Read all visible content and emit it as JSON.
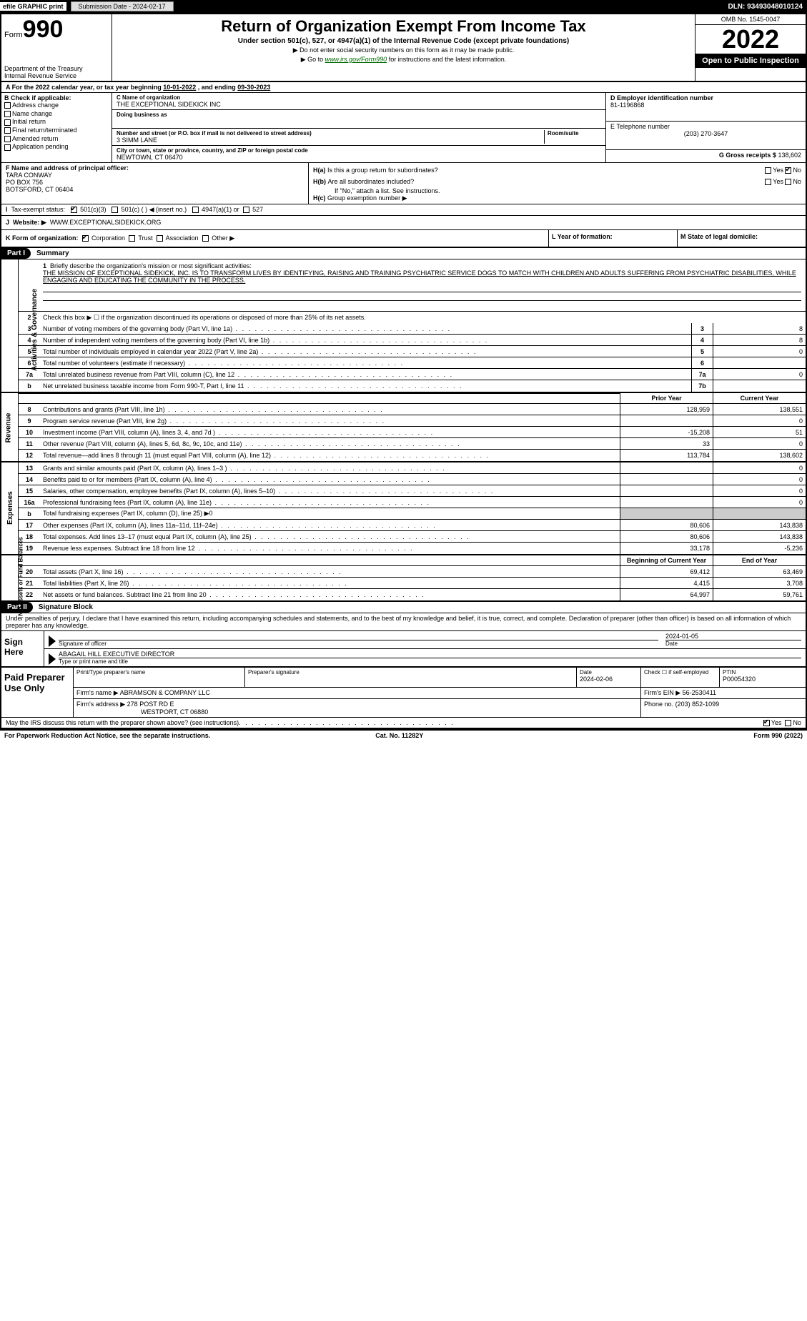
{
  "topbar": {
    "efile": "efile GRAPHIC print",
    "submission_label": "Submission Date - 2024-02-17",
    "dln": "DLN: 93493048010124"
  },
  "header": {
    "form_label": "Form",
    "form_number": "990",
    "dept": "Department of the Treasury",
    "irs": "Internal Revenue Service",
    "title": "Return of Organization Exempt From Income Tax",
    "subtitle": "Under section 501(c), 527, or 4947(a)(1) of the Internal Revenue Code (except private foundations)",
    "note1": "▶ Do not enter social security numbers on this form as it may be made public.",
    "note2_pre": "▶ Go to ",
    "note2_link": "www.irs.gov/Form990",
    "note2_post": " for instructions and the latest information.",
    "omb": "OMB No. 1545-0047",
    "year": "2022",
    "otp": "Open to Public Inspection"
  },
  "period": {
    "text_pre": "A For the 2022 calendar year, or tax year beginning ",
    "begin": "10-01-2022",
    "mid": " , and ending ",
    "end": "09-30-2023"
  },
  "boxB": {
    "label": "B Check if applicable:",
    "opts": [
      "Address change",
      "Name change",
      "Initial return",
      "Final return/terminated",
      "Amended return",
      "Application pending"
    ]
  },
  "boxC": {
    "name_label": "C Name of organization",
    "name": "THE EXCEPTIONAL SIDEKICK INC",
    "dba_label": "Doing business as",
    "dba": "",
    "street_label": "Number and street (or P.O. box if mail is not delivered to street address)",
    "room_label": "Room/suite",
    "street": "3 SIMM LANE",
    "city_label": "City or town, state or province, country, and ZIP or foreign postal code",
    "city": "NEWTOWN, CT  06470"
  },
  "boxD": {
    "label": "D Employer identification number",
    "value": "81-1196868"
  },
  "boxE": {
    "label": "E Telephone number",
    "value": "(203) 270-3647"
  },
  "boxG": {
    "label": "G Gross receipts $",
    "value": "138,602"
  },
  "boxF": {
    "label": "F Name and address of principal officer:",
    "name": "TARA CONWAY",
    "line2": "PO BOX 756",
    "line3": "BOTSFORD, CT  06404"
  },
  "boxH": {
    "a_label": "H(a)",
    "a_q": "Is this a group return for subordinates?",
    "a_no": true,
    "b_label": "H(b)",
    "b_q": "Are all subordinates included?",
    "b_note": "If \"No,\" attach a list. See instructions.",
    "c_label": "H(c)",
    "c_q": "Group exemption number ▶"
  },
  "boxI": {
    "label": "I",
    "txt": "Tax-exempt status:",
    "c501c3": true,
    "c501c": "501(c) (  ) ◀ (insert no.)",
    "c4947": "4947(a)(1) or",
    "c527": "527"
  },
  "boxJ": {
    "label": "J",
    "txt": "Website: ▶",
    "value": "WWW.EXCEPTIONALSIDEKICK.ORG"
  },
  "boxK": {
    "txt": "K Form of organization:",
    "corp": true,
    "opts": [
      "Corporation",
      "Trust",
      "Association",
      "Other ▶"
    ]
  },
  "boxL": {
    "label": "L Year of formation:",
    "value": ""
  },
  "boxM": {
    "label": "M State of legal domicile:",
    "value": ""
  },
  "part1": {
    "hdr": "Part I",
    "title": "Summary",
    "side1": "Activities & Governance",
    "side2": "Revenue",
    "side3": "Expenses",
    "side4": "Net Assets or Fund Balances",
    "q1_label": "1",
    "q1": "Briefly describe the organization's mission or most significant activities:",
    "q1_text": "THE MISSION OF EXCEPTIONAL SIDEKICK, INC. IS TO TRANSFORM LIVES BY IDENTIFYING, RAISING AND TRAINING PSYCHIATRIC SERVICE DOGS TO MATCH WITH CHILDREN AND ADULTS SUFFERING FROM PSYCHIATRIC DISABILITIES, WHILE ENGAGING AND EDUCATING THE COMMUNITY IN THE PROCESS.",
    "q2": "Check this box ▶ ☐ if the organization discontinued its operations or disposed of more than 25% of its net assets.",
    "lines_ag": [
      {
        "n": "3",
        "t": "Number of voting members of the governing body (Part VI, line 1a)",
        "b": "3",
        "v": "8"
      },
      {
        "n": "4",
        "t": "Number of independent voting members of the governing body (Part VI, line 1b)",
        "b": "4",
        "v": "8"
      },
      {
        "n": "5",
        "t": "Total number of individuals employed in calendar year 2022 (Part V, line 2a)",
        "b": "5",
        "v": "0"
      },
      {
        "n": "6",
        "t": "Total number of volunteers (estimate if necessary)",
        "b": "6",
        "v": ""
      },
      {
        "n": "7a",
        "t": "Total unrelated business revenue from Part VIII, column (C), line 12",
        "b": "7a",
        "v": "0"
      },
      {
        "n": "b",
        "t": "Net unrelated business taxable income from Form 990-T, Part I, line 11",
        "b": "7b",
        "v": ""
      }
    ],
    "col_prior": "Prior Year",
    "col_current": "Current Year",
    "rev": [
      {
        "n": "8",
        "t": "Contributions and grants (Part VIII, line 1h)",
        "p": "128,959",
        "c": "138,551"
      },
      {
        "n": "9",
        "t": "Program service revenue (Part VIII, line 2g)",
        "p": "",
        "c": "0"
      },
      {
        "n": "10",
        "t": "Investment income (Part VIII, column (A), lines 3, 4, and 7d )",
        "p": "-15,208",
        "c": "51"
      },
      {
        "n": "11",
        "t": "Other revenue (Part VIII, column (A), lines 5, 6d, 8c, 9c, 10c, and 11e)",
        "p": "33",
        "c": "0"
      },
      {
        "n": "12",
        "t": "Total revenue—add lines 8 through 11 (must equal Part VIII, column (A), line 12)",
        "p": "113,784",
        "c": "138,602"
      }
    ],
    "exp": [
      {
        "n": "13",
        "t": "Grants and similar amounts paid (Part IX, column (A), lines 1–3 )",
        "p": "",
        "c": "0"
      },
      {
        "n": "14",
        "t": "Benefits paid to or for members (Part IX, column (A), line 4)",
        "p": "",
        "c": "0"
      },
      {
        "n": "15",
        "t": "Salaries, other compensation, employee benefits (Part IX, column (A), lines 5–10)",
        "p": "",
        "c": "0"
      },
      {
        "n": "16a",
        "t": "Professional fundraising fees (Part IX, column (A), line 11e)",
        "p": "",
        "c": "0"
      },
      {
        "n": "b",
        "t": "Total fundraising expenses (Part IX, column (D), line 25) ▶0",
        "p": "SHADE",
        "c": "SHADE"
      },
      {
        "n": "17",
        "t": "Other expenses (Part IX, column (A), lines 11a–11d, 11f–24e)",
        "p": "80,606",
        "c": "143,838"
      },
      {
        "n": "18",
        "t": "Total expenses. Add lines 13–17 (must equal Part IX, column (A), line 25)",
        "p": "80,606",
        "c": "143,838"
      },
      {
        "n": "19",
        "t": "Revenue less expenses. Subtract line 18 from line 12",
        "p": "33,178",
        "c": "-5,236"
      }
    ],
    "col_begin": "Beginning of Current Year",
    "col_end": "End of Year",
    "net": [
      {
        "n": "20",
        "t": "Total assets (Part X, line 16)",
        "p": "69,412",
        "c": "63,469"
      },
      {
        "n": "21",
        "t": "Total liabilities (Part X, line 26)",
        "p": "4,415",
        "c": "3,708"
      },
      {
        "n": "22",
        "t": "Net assets or fund balances. Subtract line 21 from line 20",
        "p": "64,997",
        "c": "59,761"
      }
    ]
  },
  "part2": {
    "hdr": "Part II",
    "title": "Signature Block",
    "decl": "Under penalties of perjury, I declare that I have examined this return, including accompanying schedules and statements, and to the best of my knowledge and belief, it is true, correct, and complete. Declaration of preparer (other than officer) is based on all information of which preparer has any knowledge.",
    "sign_here": "Sign Here",
    "sig_officer": "Signature of officer",
    "sig_date": "2024-01-05",
    "date_label": "Date",
    "officer_name": "ABAGAIL HILL  EXECUTIVE DIRECTOR",
    "officer_label": "Type or print name and title",
    "paid": "Paid Preparer Use Only",
    "prep_name_label": "Print/Type preparer's name",
    "prep_sig_label": "Preparer's signature",
    "prep_date_label": "Date",
    "prep_date": "2024-02-06",
    "self_emp": "Check ☐ if self-employed",
    "ptin_label": "PTIN",
    "ptin": "P00054320",
    "firm_name_label": "Firm's name    ▶",
    "firm_name": "ABRAMSON & COMPANY LLC",
    "firm_ein_label": "Firm's EIN ▶",
    "firm_ein": "56-2530411",
    "firm_addr_label": "Firm's address ▶",
    "firm_addr1": "278 POST RD E",
    "firm_addr2": "WESTPORT, CT  06880",
    "phone_label": "Phone no.",
    "phone": "(203) 852-1099",
    "discuss": "May the IRS discuss this return with the preparer shown above? (see instructions)",
    "discuss_yes": true
  },
  "footer": {
    "left": "For Paperwork Reduction Act Notice, see the separate instructions.",
    "mid": "Cat. No. 11282Y",
    "right": "Form 990 (2022)"
  }
}
